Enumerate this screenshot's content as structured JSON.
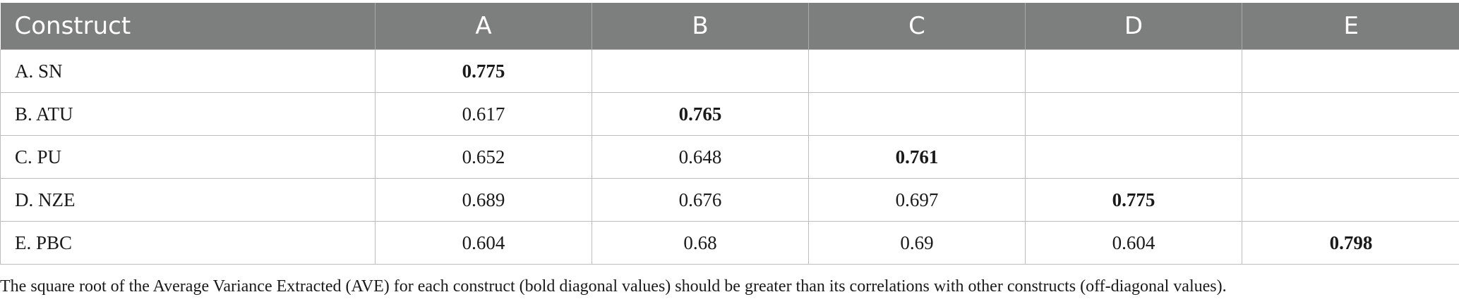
{
  "table": {
    "headers": [
      "Construct",
      "A",
      "B",
      "C",
      "D",
      "E"
    ],
    "rows": [
      {
        "construct": "A. SN",
        "cells": [
          "0.775",
          "",
          "",
          "",
          ""
        ]
      },
      {
        "construct": "B. ATU",
        "cells": [
          "0.617",
          "0.765",
          "",
          "",
          ""
        ]
      },
      {
        "construct": "C. PU",
        "cells": [
          "0.652",
          "0.648",
          "0.761",
          "",
          ""
        ]
      },
      {
        "construct": "D. NZE",
        "cells": [
          "0.689",
          "0.676",
          "0.697",
          "0.775",
          ""
        ]
      },
      {
        "construct": "E. PBC",
        "cells": [
          "0.604",
          "0.68",
          "0.69",
          "0.604",
          "0.798"
        ]
      }
    ]
  },
  "footnote": "The square root of the Average Variance Extracted (AVE) for each construct (bold diagonal values) should be greater than its correlations with other constructs (off-diagonal values)."
}
